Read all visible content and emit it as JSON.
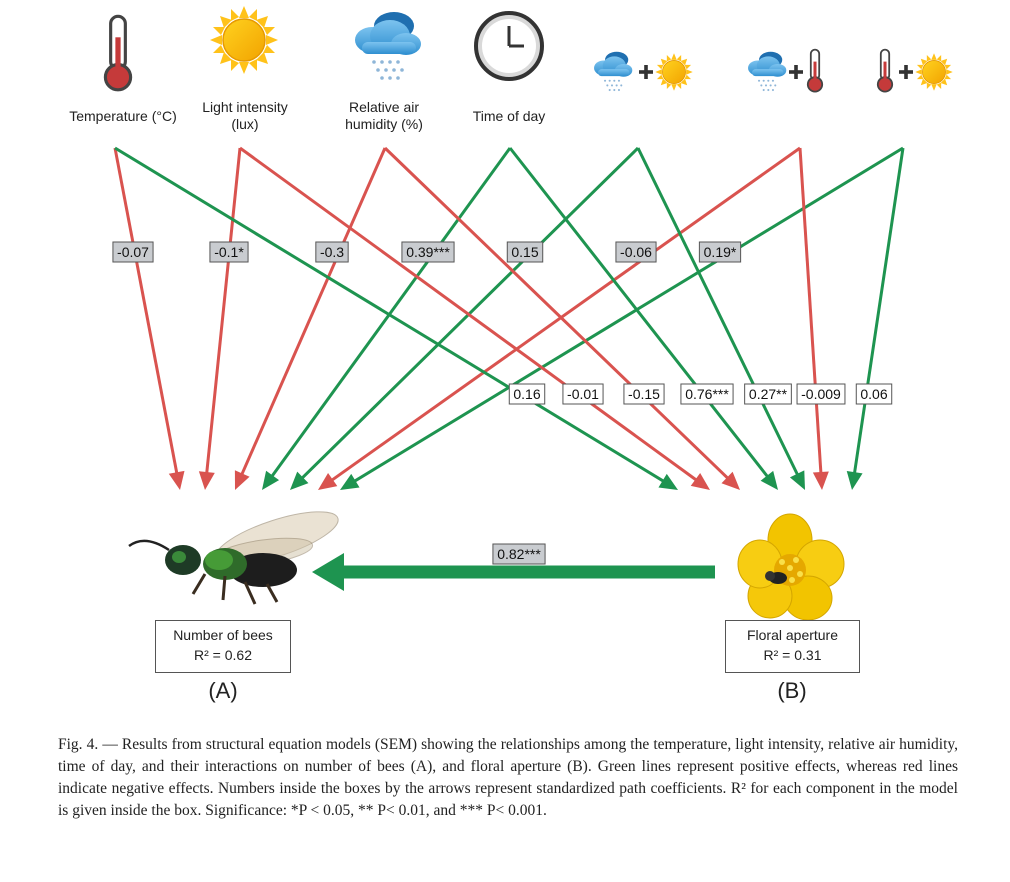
{
  "predictors": [
    {
      "label": "Temperature (°C)",
      "icon": "thermometer-icon"
    },
    {
      "label": "Light intensity\n(lux)",
      "icon": "sun-icon"
    },
    {
      "label": "Relative air\nhumidity (%)",
      "icon": "rain-cloud-icon"
    },
    {
      "label": "Time of day",
      "icon": "clock-icon"
    },
    {
      "label": "",
      "icon": "rain-cloud-plus-sun-icon"
    },
    {
      "label": "",
      "icon": "rain-cloud-plus-thermometer-icon"
    },
    {
      "label": "",
      "icon": "thermometer-plus-sun-icon"
    }
  ],
  "paths_to_bees": [
    {
      "from": "Temperature",
      "coef": "-0.07",
      "sign": "negative"
    },
    {
      "from": "Light intensity",
      "coef": "-0.1*",
      "sign": "negative"
    },
    {
      "from": "Relative air humidity",
      "coef": "-0.3",
      "sign": "negative"
    },
    {
      "from": "Time of day",
      "coef": "",
      "sign": "positive"
    },
    {
      "from": "Humidity + Light",
      "coef": "",
      "sign": "positive"
    },
    {
      "from": "Humidity + Temperature",
      "coef": "",
      "sign": "negative"
    },
    {
      "from": "Temperature + Light",
      "coef": "",
      "sign": "positive"
    }
  ],
  "paths_to_flower": [
    {
      "from": "Temperature",
      "coef": "0.16",
      "sign": "positive"
    },
    {
      "from": "Light intensity",
      "coef": "-0.01",
      "sign": "negative"
    },
    {
      "from": "Relative air humidity",
      "coef": "-0.15",
      "sign": "negative"
    },
    {
      "from": "Time of day",
      "coef": "0.76***",
      "sign": "positive"
    },
    {
      "from": "Humidity + Light",
      "coef": "0.27**",
      "sign": "positive"
    },
    {
      "from": "Humidity + Temperature",
      "coef": "-0.009",
      "sign": "negative"
    },
    {
      "from": "Temperature + Light",
      "coef": "0.06",
      "sign": "positive"
    }
  ],
  "upper_labels": [
    "-0.07",
    "-0.1*",
    "-0.3",
    "0.39***",
    "0.15",
    "-0.06",
    "0.19*"
  ],
  "aperture_to_bees": {
    "coef": "0.82***",
    "sign": "positive"
  },
  "outcomes": {
    "bees": {
      "title": "Number of bees",
      "r2": "R² = 0.62",
      "letter": "(A)"
    },
    "flower": {
      "title": "Floral aperture",
      "r2": "R² = 0.31",
      "letter": "(B)"
    }
  },
  "colors": {
    "positive": "#1e9450",
    "negative": "#d9534f",
    "label_bg": "#c9ccd0"
  },
  "caption": "Fig. 4. — Results from structural equation models (SEM) showing the relationships among the temperature, light intensity, relative air humidity, time of day, and their interactions on number of bees (A), and floral aperture (B). Green lines represent positive effects, whereas red lines indicate negative effects. Numbers inside the boxes by the arrows represent standardized path coefficients. R² for each component in the model is given inside the box. Significance: *P < 0.05, ** P< 0.01, and *** P< 0.001."
}
